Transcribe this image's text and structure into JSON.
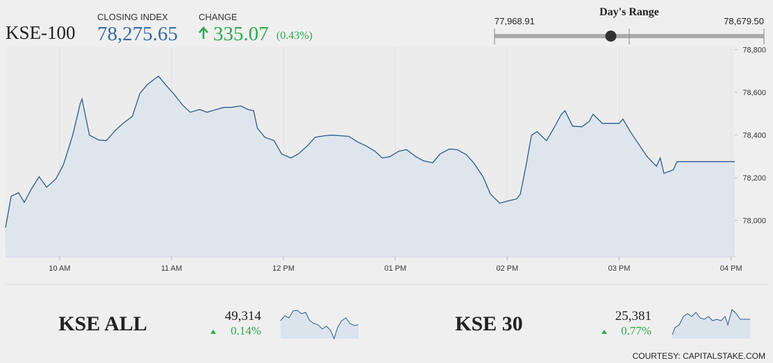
{
  "header": {
    "symbol": "KSE-100",
    "closing_label": "CLOSING INDEX",
    "closing_index": {
      "value": 78275.65,
      "label": "78,275.65"
    },
    "change_label": "CHANGE",
    "change": "335.07",
    "change_percent": "(0.43%)"
  },
  "day_range": {
    "title": "Day's Range",
    "low": {
      "value": 77968.91,
      "label": "77,968.91"
    },
    "high": {
      "value": 78679.5,
      "label": "78,679.50"
    }
  },
  "chart_data": {
    "type": "line",
    "x": [
      571,
      574,
      578,
      581,
      585,
      589,
      593,
      598,
      602,
      607,
      611,
      612,
      616,
      621,
      625,
      630,
      634,
      639,
      643,
      647,
      652,
      653,
      657,
      661,
      666,
      670,
      675,
      679,
      684,
      688,
      692,
      697,
      701,
      704,
      706,
      710,
      715,
      719,
      724,
      728,
      733,
      737,
      742,
      746,
      751,
      755,
      760,
      764,
      769,
      773,
      777,
      782,
      786,
      791,
      795,
      800,
      804,
      809,
      813,
      818,
      822,
      827,
      831,
      836,
      840,
      845,
      847,
      850,
      853,
      856,
      861,
      865,
      869,
      871,
      875,
      880,
      884,
      886,
      891,
      895,
      900,
      902,
      906,
      911,
      915,
      920,
      922,
      924,
      929,
      931,
      962
    ],
    "values": [
      77967,
      78114,
      78130,
      78085,
      78150,
      78205,
      78156,
      78195,
      78260,
      78400,
      78546,
      78569,
      78400,
      78377,
      78374,
      78423,
      78455,
      78488,
      78595,
      78637,
      78670,
      78676,
      78634,
      78595,
      78540,
      78507,
      78520,
      78507,
      78520,
      78530,
      78530,
      78537,
      78520,
      78514,
      78433,
      78390,
      78374,
      78312,
      78293,
      78312,
      78351,
      78390,
      78397,
      78400,
      78397,
      78394,
      78367,
      78351,
      78325,
      78293,
      78299,
      78325,
      78332,
      78299,
      78280,
      78270,
      78312,
      78335,
      78332,
      78309,
      78270,
      78205,
      78124,
      78081,
      78091,
      78101,
      78124,
      78254,
      78400,
      78416,
      78374,
      78433,
      78498,
      78514,
      78442,
      78439,
      78465,
      78498,
      78455,
      78455,
      78455,
      78475,
      78416,
      78351,
      78299,
      78254,
      78293,
      78221,
      78237,
      78276,
      78276
    ],
    "color": "#2b5b8c",
    "fill": "#dbe4ed",
    "xlim": [
      571,
      962
    ],
    "ylim": [
      77830,
      78815
    ],
    "xticks": [
      {
        "value": 600,
        "label": "10 AM"
      },
      {
        "value": 660,
        "label": "11 AM"
      },
      {
        "value": 720,
        "label": "12 PM"
      },
      {
        "value": 780,
        "label": "01 PM"
      },
      {
        "value": 840,
        "label": "02 PM"
      },
      {
        "value": 900,
        "label": "03 PM"
      },
      {
        "value": 960,
        "label": "04 PM"
      }
    ],
    "yticks": [
      {
        "value": 78000,
        "label": "78,000"
      },
      {
        "value": 78200,
        "label": "78,200"
      },
      {
        "value": 78400,
        "label": "78,400"
      },
      {
        "value": 78600,
        "label": "78,600"
      },
      {
        "value": 78800,
        "label": "78,800"
      }
    ],
    "grid": "x"
  },
  "indices": [
    {
      "name": "KSE ALL",
      "value": "49,314",
      "change": "0.14%"
    },
    {
      "name": "KSE 30",
      "value": "25,381",
      "change": "0.77%"
    }
  ],
  "footer": "COURTESY: CAPITALSTAKE.COM"
}
